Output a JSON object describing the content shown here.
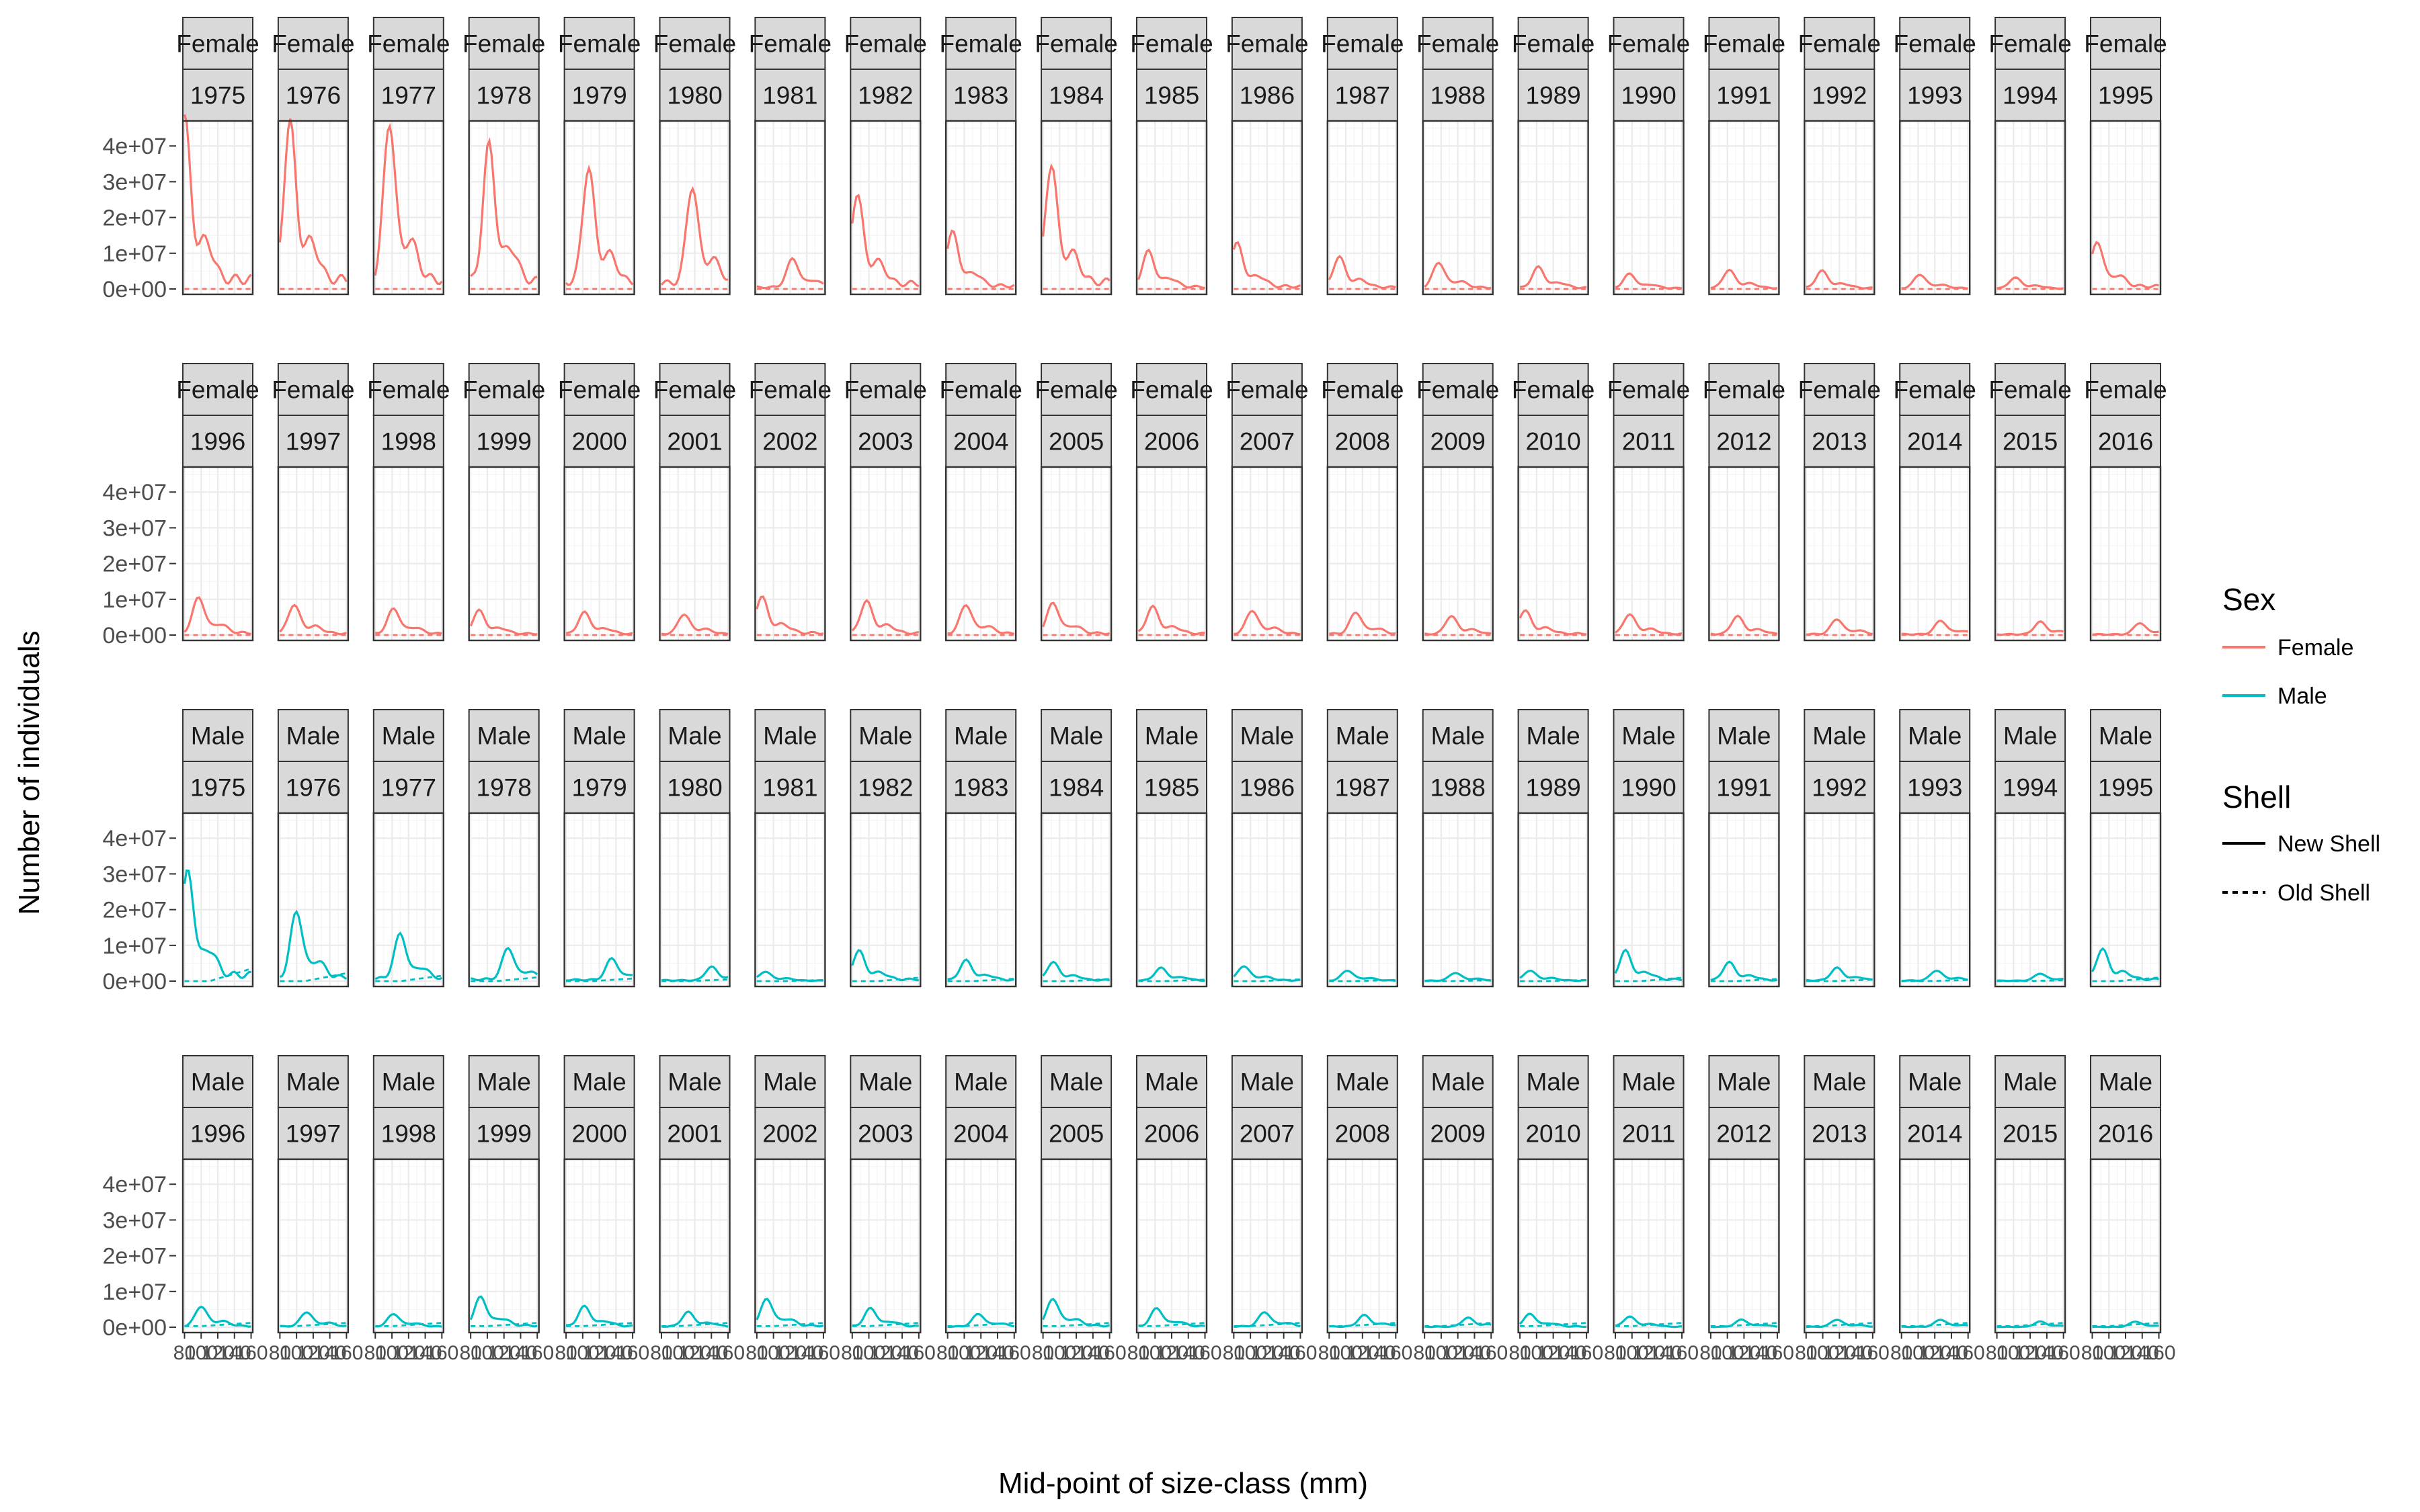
{
  "chart_data": {
    "type": "line",
    "xlabel": "Mid-point of size-class (mm)",
    "ylabel": "Number of individuals",
    "x_ticks": [
      80,
      100,
      120,
      140,
      160
    ],
    "xlim": [
      78,
      162
    ],
    "y_ticks": [
      "0e+00",
      "1e+07",
      "2e+07",
      "3e+07",
      "4e+07"
    ],
    "ylim": [
      -1500000,
      47000000
    ],
    "grid": true,
    "legend_position": "right",
    "legend": {
      "sex_title": "Sex",
      "sex_items": [
        {
          "label": "Female",
          "color": "#f8766d"
        },
        {
          "label": "Male",
          "color": "#00bfc4"
        }
      ],
      "shell_title": "Shell",
      "shell_items": [
        {
          "label": "New Shell",
          "style": "solid"
        },
        {
          "label": "Old Shell",
          "style": "dashed"
        }
      ]
    },
    "facet_rows": [
      {
        "sex": "Female",
        "years": [
          "1975",
          "1976",
          "1977",
          "1978",
          "1979",
          "1980",
          "1981",
          "1982",
          "1983",
          "1984",
          "1985",
          "1986",
          "1987",
          "1988",
          "1989",
          "1990",
          "1991",
          "1992",
          "1993",
          "1994",
          "1995"
        ],
        "new_shell_peaks_mm": [
          [
            80,
            45
          ],
          [
            92,
            44
          ],
          [
            97,
            44
          ],
          [
            102,
            38
          ],
          [
            107,
            32
          ],
          [
            117,
            27
          ],
          [
            123,
            8
          ],
          [
            86,
            25
          ],
          [
            86,
            15
          ],
          [
            90,
            33
          ],
          [
            92,
            10
          ],
          [
            84,
            12
          ],
          [
            92,
            8.5
          ],
          [
            97,
            7
          ],
          [
            102,
            5.8
          ],
          [
            97,
            4
          ],
          [
            102,
            5
          ],
          [
            99,
            4.8
          ],
          [
            102,
            3.8
          ],
          [
            102,
            3
          ],
          [
            86,
            12.5
          ]
        ],
        "old_shell": "near zero"
      },
      {
        "sex": "Female",
        "years": [
          "1996",
          "1997",
          "1998",
          "1999",
          "2000",
          "2001",
          "2002",
          "2003",
          "2004",
          "2005",
          "2006",
          "2007",
          "2008",
          "2009",
          "2010",
          "2011",
          "2012",
          "2013",
          "2014",
          "2015",
          "2016"
        ],
        "new_shell_peaks_mm": [
          [
            97,
            10
          ],
          [
            97,
            8
          ],
          [
            102,
            7
          ],
          [
            90,
            6.5
          ],
          [
            102,
            6
          ],
          [
            107,
            5.5
          ],
          [
            86,
            10
          ],
          [
            97,
            9
          ],
          [
            102,
            8
          ],
          [
            92,
            8.5
          ],
          [
            97,
            7.5
          ],
          [
            102,
            6.5
          ],
          [
            112,
            6
          ],
          [
            112,
            5
          ],
          [
            86,
            6.5
          ],
          [
            97,
            5.5
          ],
          [
            112,
            5
          ],
          [
            117,
            4.2
          ],
          [
            127,
            3.8
          ],
          [
            132,
            3.5
          ],
          [
            137,
            3.2
          ]
        ],
        "old_shell": "near zero"
      },
      {
        "sex": "Male",
        "years": [
          "1975",
          "1976",
          "1977",
          "1978",
          "1979",
          "1980",
          "1981",
          "1982",
          "1983",
          "1984",
          "1985",
          "1986",
          "1987",
          "1988",
          "1989",
          "1990",
          "1991",
          "1992",
          "1993",
          "1994",
          "1995"
        ],
        "new_shell_peaks_mm": [
          [
            84,
            29
          ],
          [
            100,
            18.5
          ],
          [
            110,
            12.5
          ],
          [
            125,
            8.8
          ],
          [
            135,
            6
          ],
          [
            140,
            3.8
          ],
          [
            90,
            2.5
          ],
          [
            88,
            8
          ],
          [
            102,
            5.5
          ],
          [
            92,
            5
          ],
          [
            107,
            3.5
          ],
          [
            92,
            4
          ],
          [
            102,
            2.8
          ],
          [
            117,
            2.2
          ],
          [
            92,
            2.8
          ],
          [
            92,
            8
          ],
          [
            102,
            5
          ],
          [
            117,
            3.5
          ],
          [
            122,
            2.8
          ],
          [
            132,
            2
          ],
          [
            92,
            8.5
          ]
        ],
        "old_shell": "rising toward large sizes"
      },
      {
        "sex": "Male",
        "years": [
          "1996",
          "1997",
          "1998",
          "1999",
          "2000",
          "2001",
          "2002",
          "2003",
          "2004",
          "2005",
          "2006",
          "2007",
          "2008",
          "2009",
          "2010",
          "2011",
          "2012",
          "2013",
          "2014",
          "2015",
          "2016"
        ],
        "new_shell_peaks_mm": [
          [
            100,
            5.5
          ],
          [
            112,
            4
          ],
          [
            102,
            3.5
          ],
          [
            92,
            8
          ],
          [
            102,
            5.5
          ],
          [
            112,
            4
          ],
          [
            92,
            7.5
          ],
          [
            102,
            5
          ],
          [
            117,
            3.5
          ],
          [
            92,
            7.5
          ],
          [
            102,
            5
          ],
          [
            117,
            4
          ],
          [
            122,
            3.2
          ],
          [
            132,
            2.5
          ],
          [
            92,
            3.5
          ],
          [
            97,
            2.8
          ],
          [
            117,
            2
          ],
          [
            117,
            2
          ],
          [
            127,
            2
          ],
          [
            132,
            1.5
          ],
          [
            132,
            1.5
          ]
        ],
        "old_shell": "low, slightly rising"
      }
    ]
  }
}
